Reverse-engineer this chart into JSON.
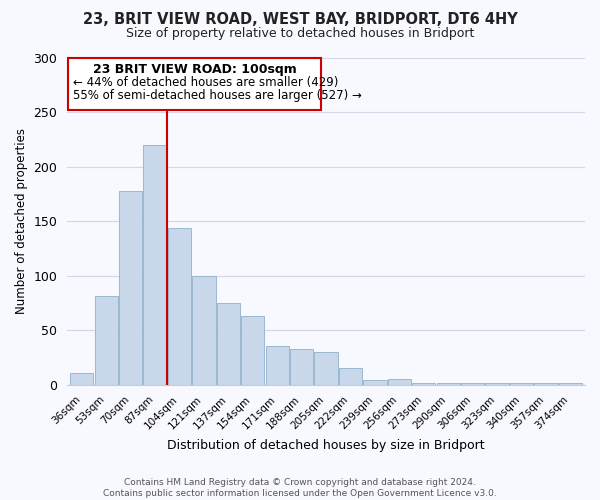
{
  "title1": "23, BRIT VIEW ROAD, WEST BAY, BRIDPORT, DT6 4HY",
  "title2": "Size of property relative to detached houses in Bridport",
  "xlabel": "Distribution of detached houses by size in Bridport",
  "ylabel": "Number of detached properties",
  "categories": [
    "36sqm",
    "53sqm",
    "70sqm",
    "87sqm",
    "104sqm",
    "121sqm",
    "137sqm",
    "154sqm",
    "171sqm",
    "188sqm",
    "205sqm",
    "222sqm",
    "239sqm",
    "256sqm",
    "273sqm",
    "290sqm",
    "306sqm",
    "323sqm",
    "340sqm",
    "357sqm",
    "374sqm"
  ],
  "values": [
    11,
    81,
    178,
    220,
    144,
    100,
    75,
    63,
    35,
    33,
    30,
    15,
    4,
    5,
    1,
    1,
    1,
    1,
    1,
    1,
    1
  ],
  "bar_color": "#c8d8ea",
  "bar_edge_color": "#9ab8d0",
  "vline_color": "#cc0000",
  "annotation_title": "23 BRIT VIEW ROAD: 100sqm",
  "annotation_line1": "← 44% of detached houses are smaller (429)",
  "annotation_line2": "55% of semi-detached houses are larger (527) →",
  "box_edge_color": "#cc0000",
  "ylim": [
    0,
    300
  ],
  "yticks": [
    0,
    50,
    100,
    150,
    200,
    250,
    300
  ],
  "footer1": "Contains HM Land Registry data © Crown copyright and database right 2024.",
  "footer2": "Contains public sector information licensed under the Open Government Licence v3.0.",
  "bg_color": "#f8f8ff"
}
